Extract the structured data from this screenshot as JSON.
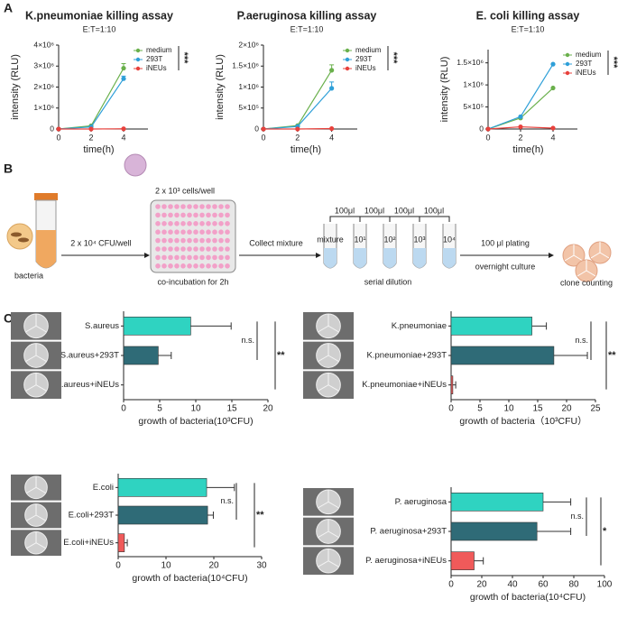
{
  "figure": {
    "panel_labels": [
      "A",
      "B",
      "C"
    ]
  },
  "diagram": {
    "bacteria": "bacteria",
    "bacteria_dose": "2 x 10⁴ CFU/well",
    "cell_dose": "2 x 10³ cells/well",
    "coincubation": "co-incubation for 2h",
    "collect": "Collect mixture",
    "transfers": [
      "100μl",
      "100μl",
      "100μl",
      "100μl"
    ],
    "tubes": [
      "mixture",
      "10¹",
      "10²",
      "10³",
      "10⁴"
    ],
    "dilution": "serial dilution",
    "plating": "100 μl plating",
    "culture": "overnight culture",
    "counting": "clone counting"
  },
  "chart_data": [
    {
      "type": "line",
      "title": "K.pneumoniae killing assay",
      "subtitle": "E:T=1:10",
      "x_label": "time(h)",
      "y_label": "intensity (RLU)",
      "x": [
        0,
        2,
        4
      ],
      "xlim": [
        0,
        5.5
      ],
      "xticks": [
        0,
        2,
        4
      ],
      "ylim": [
        0,
        4000000
      ],
      "yticks": [
        0,
        {
          "value": 1000000,
          "label": "1×10⁶"
        },
        {
          "value": 2000000,
          "label": "2×10⁶"
        },
        {
          "value": 3000000,
          "label": "3×10⁶"
        },
        {
          "value": 4000000,
          "label": "4×10⁶"
        }
      ],
      "series": [
        {
          "name": "medium",
          "color": "#6ab04c",
          "values": [
            0,
            150000,
            2900000
          ],
          "errors": [
            0,
            0,
            220000
          ]
        },
        {
          "name": "293T",
          "color": "#2e9fd8",
          "values": [
            0,
            100000,
            2400000
          ],
          "errors": [
            0,
            0,
            120000
          ]
        },
        {
          "name": "iNEUs",
          "color": "#e8413c",
          "values": [
            0,
            0,
            10000
          ],
          "errors": [
            0,
            0,
            0
          ]
        }
      ],
      "annotations": [
        "***"
      ]
    },
    {
      "type": "line",
      "title": "P.aeruginosa killing assay",
      "subtitle": "E:T=1:10",
      "x_label": "time(h)",
      "y_label": "intensity (RLU)",
      "x": [
        0,
        2,
        4
      ],
      "xlim": [
        0,
        5.5
      ],
      "xticks": [
        0,
        2,
        4
      ],
      "ylim": [
        0,
        2000000
      ],
      "yticks": [
        0,
        {
          "value": 500000,
          "label": "5×10⁵"
        },
        {
          "value": 1000000,
          "label": "1×10⁶"
        },
        {
          "value": 1500000,
          "label": "1.5×10⁶"
        },
        {
          "value": 2000000,
          "label": "2×10⁶"
        }
      ],
      "series": [
        {
          "name": "medium",
          "color": "#6ab04c",
          "values": [
            0,
            80000,
            1400000
          ],
          "errors": [
            0,
            0,
            130000
          ]
        },
        {
          "name": "293T",
          "color": "#2e9fd8",
          "values": [
            0,
            60000,
            970000
          ],
          "errors": [
            0,
            0,
            150000
          ]
        },
        {
          "name": "iNEUs",
          "color": "#e8413c",
          "values": [
            0,
            0,
            10000
          ],
          "errors": [
            0,
            0,
            0
          ]
        }
      ],
      "annotations": [
        "***"
      ]
    },
    {
      "type": "line",
      "title": "E. coli killing assay",
      "subtitle": "E:T=1:10",
      "x_label": "time(h)",
      "y_label": "intensity (RLU)",
      "x": [
        0,
        2,
        4
      ],
      "xlim": [
        0,
        5.5
      ],
      "xticks": [
        0,
        2,
        4
      ],
      "ylim": [
        0,
        1800000
      ],
      "yticks": [
        0,
        {
          "value": 500000,
          "label": "5×10⁵"
        },
        {
          "value": 1000000,
          "label": "1×10⁶"
        },
        {
          "value": 1500000,
          "label": "1.5×10⁶"
        }
      ],
      "series": [
        {
          "name": "medium",
          "color": "#6ab04c",
          "values": [
            0,
            250000,
            930000
          ],
          "errors": [
            0,
            0,
            0
          ]
        },
        {
          "name": "293T",
          "color": "#2e9fd8",
          "values": [
            0,
            280000,
            1470000
          ],
          "errors": [
            0,
            0,
            0
          ]
        },
        {
          "name": "iNEUs",
          "color": "#e8413c",
          "values": [
            0,
            50000,
            20000
          ],
          "errors": [
            0,
            0,
            0
          ]
        }
      ],
      "annotations": [
        "***"
      ]
    },
    {
      "type": "bar",
      "orientation": "horizontal",
      "x_label": "growth of bacteria(10³CFU)",
      "categories": [
        "S.aureus",
        "S.aureus+293T",
        "S.aureus+iNEUs"
      ],
      "values": [
        9.3,
        4.8,
        0
      ],
      "errors": [
        5.6,
        1.8,
        0
      ],
      "colors": [
        "#2fd3c1",
        "#2f6b77",
        "#f05a5a"
      ],
      "xlim": [
        0,
        20
      ],
      "xticks": [
        0,
        5,
        10,
        15,
        20
      ],
      "annotations": [
        "n.s.",
        "**"
      ]
    },
    {
      "type": "bar",
      "orientation": "horizontal",
      "x_label": "growth of bacteria（10³CFU）",
      "categories": [
        "K.pneumoniae",
        "K.pneumoniae+293T",
        "K.pneumoniae+iNEUs"
      ],
      "values": [
        14,
        17.8,
        0.3
      ],
      "errors": [
        2.5,
        5.8,
        0.5
      ],
      "colors": [
        "#2fd3c1",
        "#2f6b77",
        "#f05a5a"
      ],
      "xlim": [
        0,
        25
      ],
      "xticks": [
        0,
        5,
        10,
        15,
        20,
        25
      ],
      "annotations": [
        "n.s.",
        "**"
      ]
    },
    {
      "type": "bar",
      "orientation": "horizontal",
      "x_label": "growth of bacteria(10⁴CFU)",
      "categories": [
        "E.coli",
        "E.coli+293T",
        "E.coli+iNEUs"
      ],
      "values": [
        18.5,
        18.7,
        1.3
      ],
      "errors": [
        5.8,
        1.2,
        0.6
      ],
      "colors": [
        "#2fd3c1",
        "#2f6b77",
        "#f05a5a"
      ],
      "xlim": [
        0,
        30
      ],
      "xticks": [
        0,
        10,
        20,
        30
      ],
      "annotations": [
        "n.s.",
        "**"
      ]
    },
    {
      "type": "bar",
      "orientation": "horizontal",
      "x_label": "growth of bacteria(10⁴CFU)",
      "categories": [
        "P. aeruginosa",
        "P. aeruginosa+293T",
        "P. aeruginosa+iNEUs"
      ],
      "values": [
        60,
        56,
        15
      ],
      "errors": [
        18,
        22,
        6
      ],
      "colors": [
        "#2fd3c1",
        "#2f6b77",
        "#f05a5a"
      ],
      "xlim": [
        0,
        100
      ],
      "xticks": [
        0,
        20,
        40,
        60,
        80,
        100
      ],
      "annotations": [
        "n.s.",
        "*"
      ]
    }
  ]
}
